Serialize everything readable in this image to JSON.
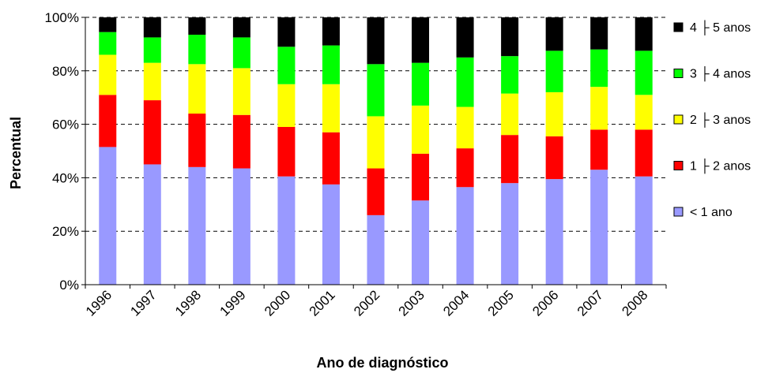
{
  "chart_data": {
    "type": "bar",
    "stacked": true,
    "percent": true,
    "xlabel": "Ano de diagnóstico",
    "ylabel": "Percentual",
    "ylim": [
      0,
      100
    ],
    "yticks": [
      "0%",
      "20%",
      "40%",
      "60%",
      "80%",
      "100%"
    ],
    "grid": "horizontal dashed",
    "legend_position": "right",
    "categories": [
      "1996",
      "1997",
      "1998",
      "1999",
      "2000",
      "2001",
      "2002",
      "2003",
      "2004",
      "2005",
      "2006",
      "2007",
      "2008"
    ],
    "series": [
      {
        "name": "< 1 ano",
        "color": "#9999ff",
        "values": [
          51.5,
          45.0,
          44.0,
          43.5,
          40.5,
          37.5,
          26.0,
          31.5,
          36.5,
          38.0,
          39.5,
          43.0,
          40.5
        ]
      },
      {
        "name": "1 ├ 2 anos",
        "color": "#ff0000",
        "values": [
          19.5,
          24.0,
          20.0,
          20.0,
          18.5,
          19.5,
          17.5,
          17.5,
          14.5,
          18.0,
          16.0,
          15.0,
          17.5
        ]
      },
      {
        "name": "2 ├ 3 anos",
        "color": "#ffff00",
        "values": [
          15.0,
          14.0,
          18.5,
          17.5,
          16.0,
          18.0,
          19.5,
          18.0,
          15.5,
          15.5,
          16.5,
          16.0,
          13.0
        ]
      },
      {
        "name": "3 ├ 4 anos",
        "color": "#00ff00",
        "values": [
          8.5,
          9.5,
          11.0,
          11.5,
          14.0,
          14.5,
          19.5,
          16.0,
          18.5,
          14.0,
          15.5,
          14.0,
          16.5
        ]
      },
      {
        "name": "4 ├ 5 anos",
        "color": "#000000",
        "values": [
          5.5,
          7.5,
          6.5,
          7.5,
          11.0,
          10.5,
          17.5,
          17.0,
          15.0,
          14.5,
          12.5,
          12.0,
          12.5
        ]
      }
    ]
  }
}
